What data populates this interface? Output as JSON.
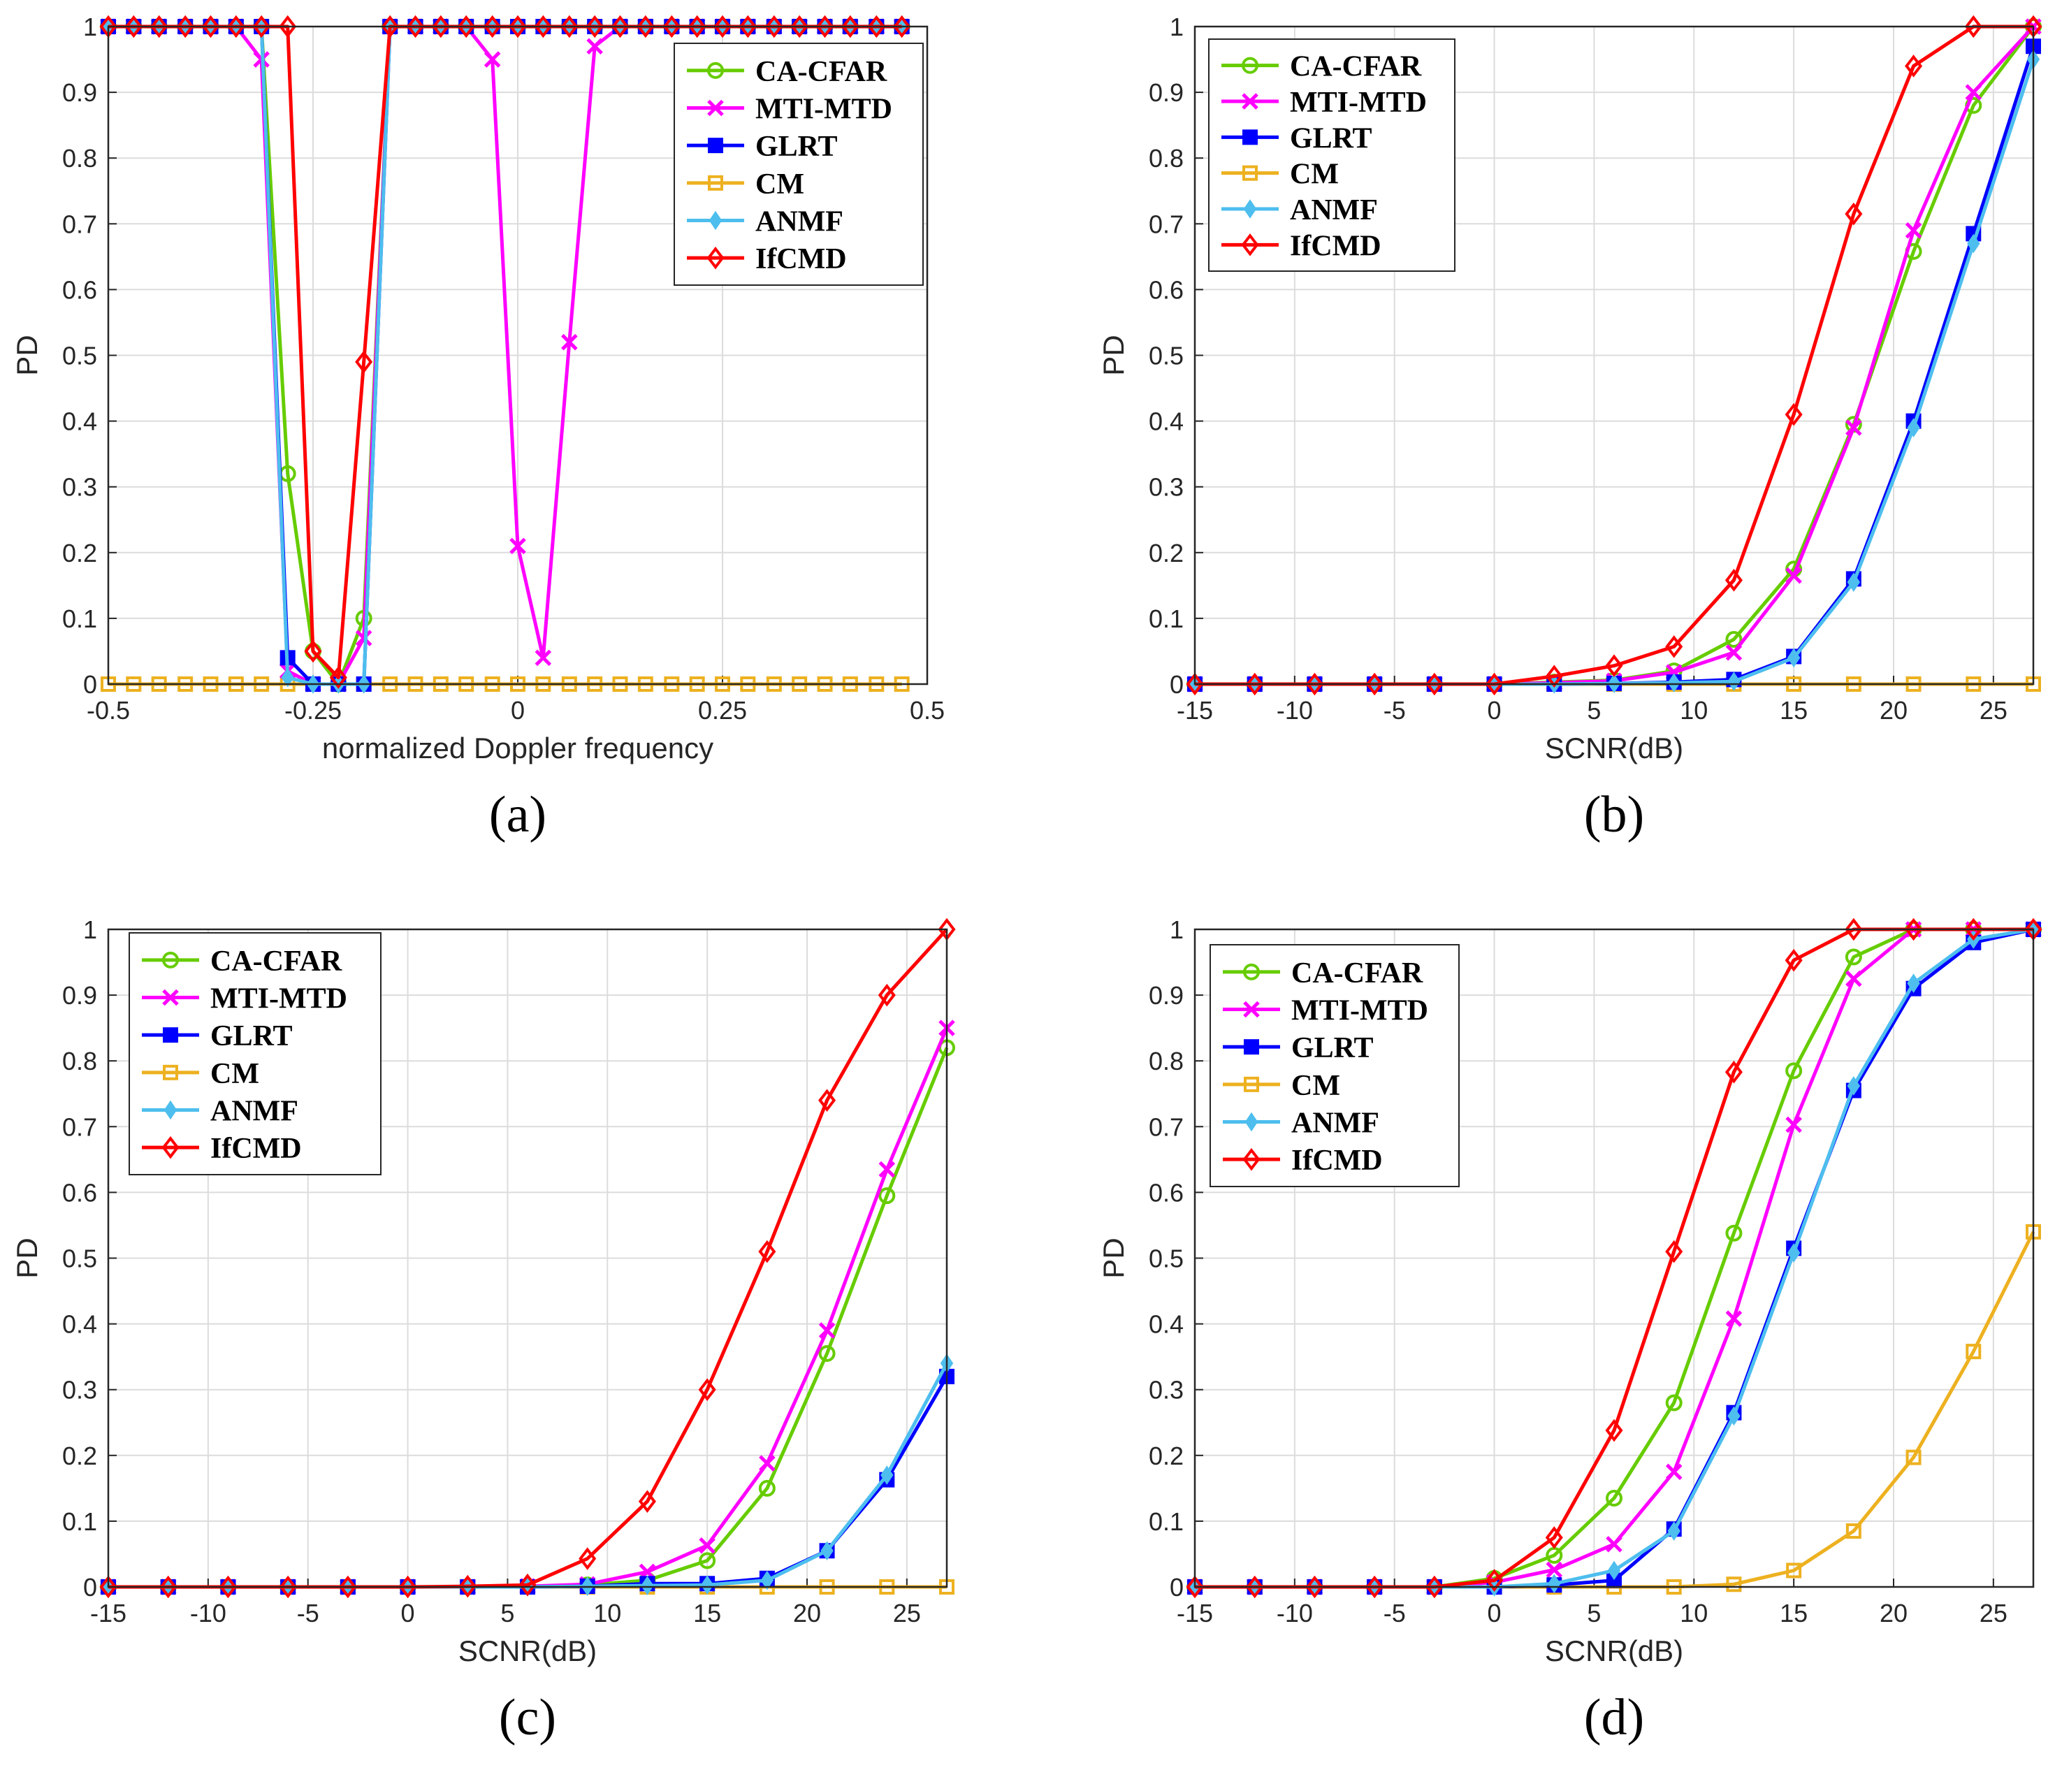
{
  "chart_data": [
    {
      "type": "line",
      "panel_label": "(a)",
      "xlabel": "normalized Doppler frequency",
      "ylabel": "PD",
      "xlim": [
        -0.5,
        0.5
      ],
      "ylim": [
        0,
        1
      ],
      "xticks": [
        -0.5,
        -0.25,
        0,
        0.25,
        0.5
      ],
      "xtick_labels": [
        "-0.5",
        "-0.25",
        "0",
        "0.25",
        "0.5"
      ],
      "yticks": [
        0,
        0.1,
        0.2,
        0.3,
        0.4,
        0.5,
        0.6,
        0.7,
        0.8,
        0.9,
        1
      ],
      "ytick_labels": [
        "0",
        "0.1",
        "0.2",
        "0.3",
        "0.4",
        "0.5",
        "0.6",
        "0.7",
        "0.8",
        "0.9",
        "1"
      ],
      "legend_position": "top-right",
      "grid": true,
      "x": [
        -0.5,
        -0.469,
        -0.438,
        -0.406,
        -0.375,
        -0.344,
        -0.313,
        -0.281,
        -0.25,
        -0.219,
        -0.188,
        -0.156,
        -0.125,
        -0.094,
        -0.063,
        -0.031,
        0,
        0.031,
        0.063,
        0.094,
        0.125,
        0.156,
        0.188,
        0.219,
        0.25,
        0.281,
        0.313,
        0.344,
        0.375,
        0.406,
        0.438,
        0.469
      ],
      "series": [
        {
          "name": "CA-CFAR",
          "values": [
            1,
            1,
            1,
            1,
            1,
            1,
            1,
            0.32,
            0.05,
            0,
            0.1,
            1,
            1,
            1,
            1,
            1,
            1,
            1,
            1,
            1,
            1,
            1,
            1,
            1,
            1,
            1,
            1,
            1,
            1,
            1,
            1,
            1
          ]
        },
        {
          "name": "MTI-MTD",
          "values": [
            1,
            1,
            1,
            1,
            1,
            1,
            0.95,
            0.02,
            0,
            0,
            0.07,
            1,
            1,
            1,
            1,
            0.95,
            0.21,
            0.04,
            0.52,
            0.97,
            1,
            1,
            1,
            1,
            1,
            1,
            1,
            1,
            1,
            1,
            1,
            1
          ]
        },
        {
          "name": "GLRT",
          "values": [
            1,
            1,
            1,
            1,
            1,
            1,
            1,
            0.04,
            0,
            0,
            0,
            1,
            1,
            1,
            1,
            1,
            1,
            1,
            1,
            1,
            1,
            1,
            1,
            1,
            1,
            1,
            1,
            1,
            1,
            1,
            1,
            1
          ]
        },
        {
          "name": "CM",
          "values": [
            0,
            0,
            0,
            0,
            0,
            0,
            0,
            0,
            0,
            0,
            0,
            0,
            0,
            0,
            0,
            0,
            0,
            0,
            0,
            0,
            0,
            0,
            0,
            0,
            0,
            0,
            0,
            0,
            0,
            0,
            0,
            0
          ]
        },
        {
          "name": "ANMF",
          "values": [
            1,
            1,
            1,
            1,
            1,
            1,
            1,
            0.01,
            0,
            0,
            0,
            1,
            1,
            1,
            1,
            1,
            1,
            1,
            1,
            1,
            1,
            1,
            1,
            1,
            1,
            1,
            1,
            1,
            1,
            1,
            1,
            1
          ]
        },
        {
          "name": "IfCMD",
          "values": [
            1,
            1,
            1,
            1,
            1,
            1,
            1,
            1,
            0.05,
            0.01,
            0.49,
            1,
            1,
            1,
            1,
            1,
            1,
            1,
            1,
            1,
            1,
            1,
            1,
            1,
            1,
            1,
            1,
            1,
            1,
            1,
            1,
            1
          ]
        }
      ]
    },
    {
      "type": "line",
      "panel_label": "(b)",
      "xlabel": "SCNR(dB)",
      "ylabel": "PD",
      "xlim": [
        -15,
        27
      ],
      "ylim": [
        0,
        1
      ],
      "xticks": [
        -15,
        -10,
        -5,
        0,
        5,
        10,
        15,
        20,
        25
      ],
      "xtick_labels": [
        "-15",
        "-10",
        "-5",
        "0",
        "5",
        "10",
        "15",
        "20",
        "25"
      ],
      "yticks": [
        0,
        0.1,
        0.2,
        0.3,
        0.4,
        0.5,
        0.6,
        0.7,
        0.8,
        0.9,
        1
      ],
      "ytick_labels": [
        "0",
        "0.1",
        "0.2",
        "0.3",
        "0.4",
        "0.5",
        "0.6",
        "0.7",
        "0.8",
        "0.9",
        "1"
      ],
      "legend_position": "top-left",
      "grid": true,
      "x": [
        -15,
        -12,
        -9,
        -6,
        -3,
        0,
        3,
        6,
        9,
        12,
        15,
        18,
        21,
        24,
        27
      ],
      "series": [
        {
          "name": "CA-CFAR",
          "values": [
            0,
            0,
            0,
            0,
            0,
            0,
            0.003,
            0.006,
            0.02,
            0.068,
            0.175,
            0.395,
            0.658,
            0.88,
            1
          ]
        },
        {
          "name": "MTI-MTD",
          "values": [
            0,
            0,
            0,
            0,
            0,
            0,
            0.002,
            0.005,
            0.018,
            0.048,
            0.165,
            0.39,
            0.69,
            0.9,
            1
          ]
        },
        {
          "name": "GLRT",
          "values": [
            0,
            0,
            0,
            0,
            0,
            0,
            0,
            0.001,
            0.003,
            0.007,
            0.042,
            0.16,
            0.4,
            0.685,
            0.97
          ]
        },
        {
          "name": "CM",
          "values": [
            0,
            0,
            0,
            0,
            0,
            0,
            0,
            0,
            0,
            0,
            0,
            0,
            0,
            0,
            0
          ]
        },
        {
          "name": "ANMF",
          "values": [
            0,
            0,
            0,
            0,
            0,
            0,
            0,
            0.001,
            0.002,
            0.004,
            0.04,
            0.155,
            0.39,
            0.67,
            0.95
          ]
        },
        {
          "name": "IfCMD",
          "values": [
            0,
            0,
            0,
            0,
            0,
            0,
            0.012,
            0.028,
            0.057,
            0.158,
            0.41,
            0.715,
            0.94,
            1,
            1
          ]
        }
      ]
    },
    {
      "type": "line",
      "panel_label": "(c)",
      "xlabel": "SCNR(dB)",
      "ylabel": "PD",
      "xlim": [
        -15,
        27
      ],
      "ylim": [
        0,
        1
      ],
      "xticks": [
        -15,
        -10,
        -5,
        0,
        5,
        10,
        15,
        20,
        25
      ],
      "xtick_labels": [
        "-15",
        "-10",
        "-5",
        "0",
        "5",
        "10",
        "15",
        "20",
        "25"
      ],
      "yticks": [
        0,
        0.1,
        0.2,
        0.3,
        0.4,
        0.5,
        0.6,
        0.7,
        0.8,
        0.9,
        1
      ],
      "ytick_labels": [
        "0",
        "0.1",
        "0.2",
        "0.3",
        "0.4",
        "0.5",
        "0.6",
        "0.7",
        "0.8",
        "0.9",
        "1"
      ],
      "legend_position": "top-left",
      "grid": true,
      "x": [
        -15,
        -12,
        -9,
        -6,
        -3,
        0,
        3,
        6,
        9,
        12,
        15,
        18,
        21,
        24,
        27
      ],
      "series": [
        {
          "name": "CA-CFAR",
          "values": [
            0,
            0,
            0,
            0,
            0,
            0,
            0,
            0.001,
            0.003,
            0.01,
            0.04,
            0.15,
            0.355,
            0.595,
            0.82
          ]
        },
        {
          "name": "MTI-MTD",
          "values": [
            0,
            0,
            0,
            0,
            0,
            0,
            0,
            0.001,
            0.004,
            0.023,
            0.063,
            0.188,
            0.39,
            0.635,
            0.85
          ]
        },
        {
          "name": "GLRT",
          "values": [
            0,
            0,
            0,
            0,
            0,
            0,
            0,
            0,
            0.001,
            0.005,
            0.005,
            0.013,
            0.055,
            0.163,
            0.32
          ]
        },
        {
          "name": "CM",
          "values": [
            0,
            0,
            0,
            0,
            0,
            0,
            0,
            0,
            0,
            0,
            0,
            0,
            0,
            0,
            0
          ]
        },
        {
          "name": "ANMF",
          "values": [
            0,
            0,
            0,
            0,
            0,
            0,
            0,
            0,
            0.001,
            0.002,
            0.003,
            0.01,
            0.055,
            0.17,
            0.34
          ]
        },
        {
          "name": "IfCMD",
          "values": [
            0,
            0,
            0,
            0,
            0,
            0,
            0.001,
            0.003,
            0.043,
            0.13,
            0.3,
            0.51,
            0.74,
            0.9,
            1
          ]
        }
      ]
    },
    {
      "type": "line",
      "panel_label": "(d)",
      "xlabel": "SCNR(dB)",
      "ylabel": "PD",
      "xlim": [
        -15,
        27
      ],
      "ylim": [
        0,
        1
      ],
      "xticks": [
        -15,
        -10,
        -5,
        0,
        5,
        10,
        15,
        20,
        25
      ],
      "xtick_labels": [
        "-15",
        "-10",
        "-5",
        "0",
        "5",
        "10",
        "15",
        "20",
        "25"
      ],
      "yticks": [
        0,
        0.1,
        0.2,
        0.3,
        0.4,
        0.5,
        0.6,
        0.7,
        0.8,
        0.9,
        1
      ],
      "ytick_labels": [
        "0",
        "0.1",
        "0.2",
        "0.3",
        "0.4",
        "0.5",
        "0.6",
        "0.7",
        "0.8",
        "0.9",
        "1"
      ],
      "legend_position": "top-left",
      "grid": true,
      "x": [
        -15,
        -12,
        -9,
        -6,
        -3,
        0,
        3,
        6,
        9,
        12,
        15,
        18,
        21,
        24,
        27
      ],
      "series": [
        {
          "name": "CA-CFAR",
          "values": [
            0,
            0,
            0,
            0,
            0,
            0.013,
            0.048,
            0.135,
            0.28,
            0.538,
            0.785,
            0.958,
            1,
            1,
            1
          ]
        },
        {
          "name": "MTI-MTD",
          "values": [
            0,
            0,
            0,
            0,
            0,
            0.007,
            0.026,
            0.065,
            0.175,
            0.408,
            0.703,
            0.925,
            1,
            1,
            1
          ]
        },
        {
          "name": "GLRT",
          "values": [
            0,
            0,
            0,
            0,
            0,
            0,
            0.003,
            0.01,
            0.088,
            0.265,
            0.515,
            0.755,
            0.91,
            0.98,
            1
          ]
        },
        {
          "name": "CM",
          "values": [
            0,
            0,
            0,
            0,
            0,
            0,
            0,
            0,
            0,
            0.004,
            0.025,
            0.085,
            0.197,
            0.358,
            0.54
          ]
        },
        {
          "name": "ANMF",
          "values": [
            0,
            0,
            0,
            0,
            0,
            0,
            0.005,
            0.025,
            0.085,
            0.26,
            0.508,
            0.762,
            0.918,
            0.985,
            1
          ]
        },
        {
          "name": "IfCMD",
          "values": [
            0,
            0,
            0,
            0,
            0,
            0.01,
            0.075,
            0.238,
            0.51,
            0.783,
            0.953,
            1,
            1,
            1,
            1
          ]
        }
      ]
    }
  ],
  "series_styles": [
    {
      "name": "CA-CFAR",
      "color": "#66cc00",
      "marker": "circle"
    },
    {
      "name": "MTI-MTD",
      "color": "#ff00ff",
      "marker": "x"
    },
    {
      "name": "GLRT",
      "color": "#0000ff",
      "marker": "square"
    },
    {
      "name": "CM",
      "color": "#edb120",
      "marker": "square-open"
    },
    {
      "name": "ANMF",
      "color": "#4dbeee",
      "marker": "diamond-filled"
    },
    {
      "name": "IfCMD",
      "color": "#ff0000",
      "marker": "diamond"
    }
  ]
}
